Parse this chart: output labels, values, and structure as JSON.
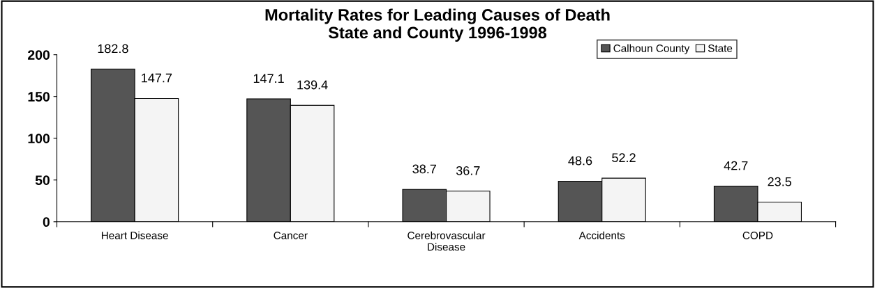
{
  "chart_data": {
    "type": "bar",
    "title": "Mortality Rates for Leading Causes of Death\nState and County 1996-1998",
    "categories": [
      "Heart Disease",
      "Cancer",
      "Cerebrovascular\nDisease",
      "Accidents",
      "COPD"
    ],
    "series": [
      {
        "name": "Calhoun County",
        "color": "#555555",
        "values": [
          182.8,
          147.1,
          38.7,
          48.6,
          42.7
        ]
      },
      {
        "name": "State",
        "color": "#f4f4f4",
        "values": [
          147.7,
          139.4,
          36.7,
          52.2,
          23.5
        ]
      }
    ],
    "ylim": [
      0,
      200
    ],
    "yticks": [
      0,
      50,
      100,
      150,
      200
    ],
    "data_labels": true,
    "grid": false,
    "legend": "top right"
  }
}
